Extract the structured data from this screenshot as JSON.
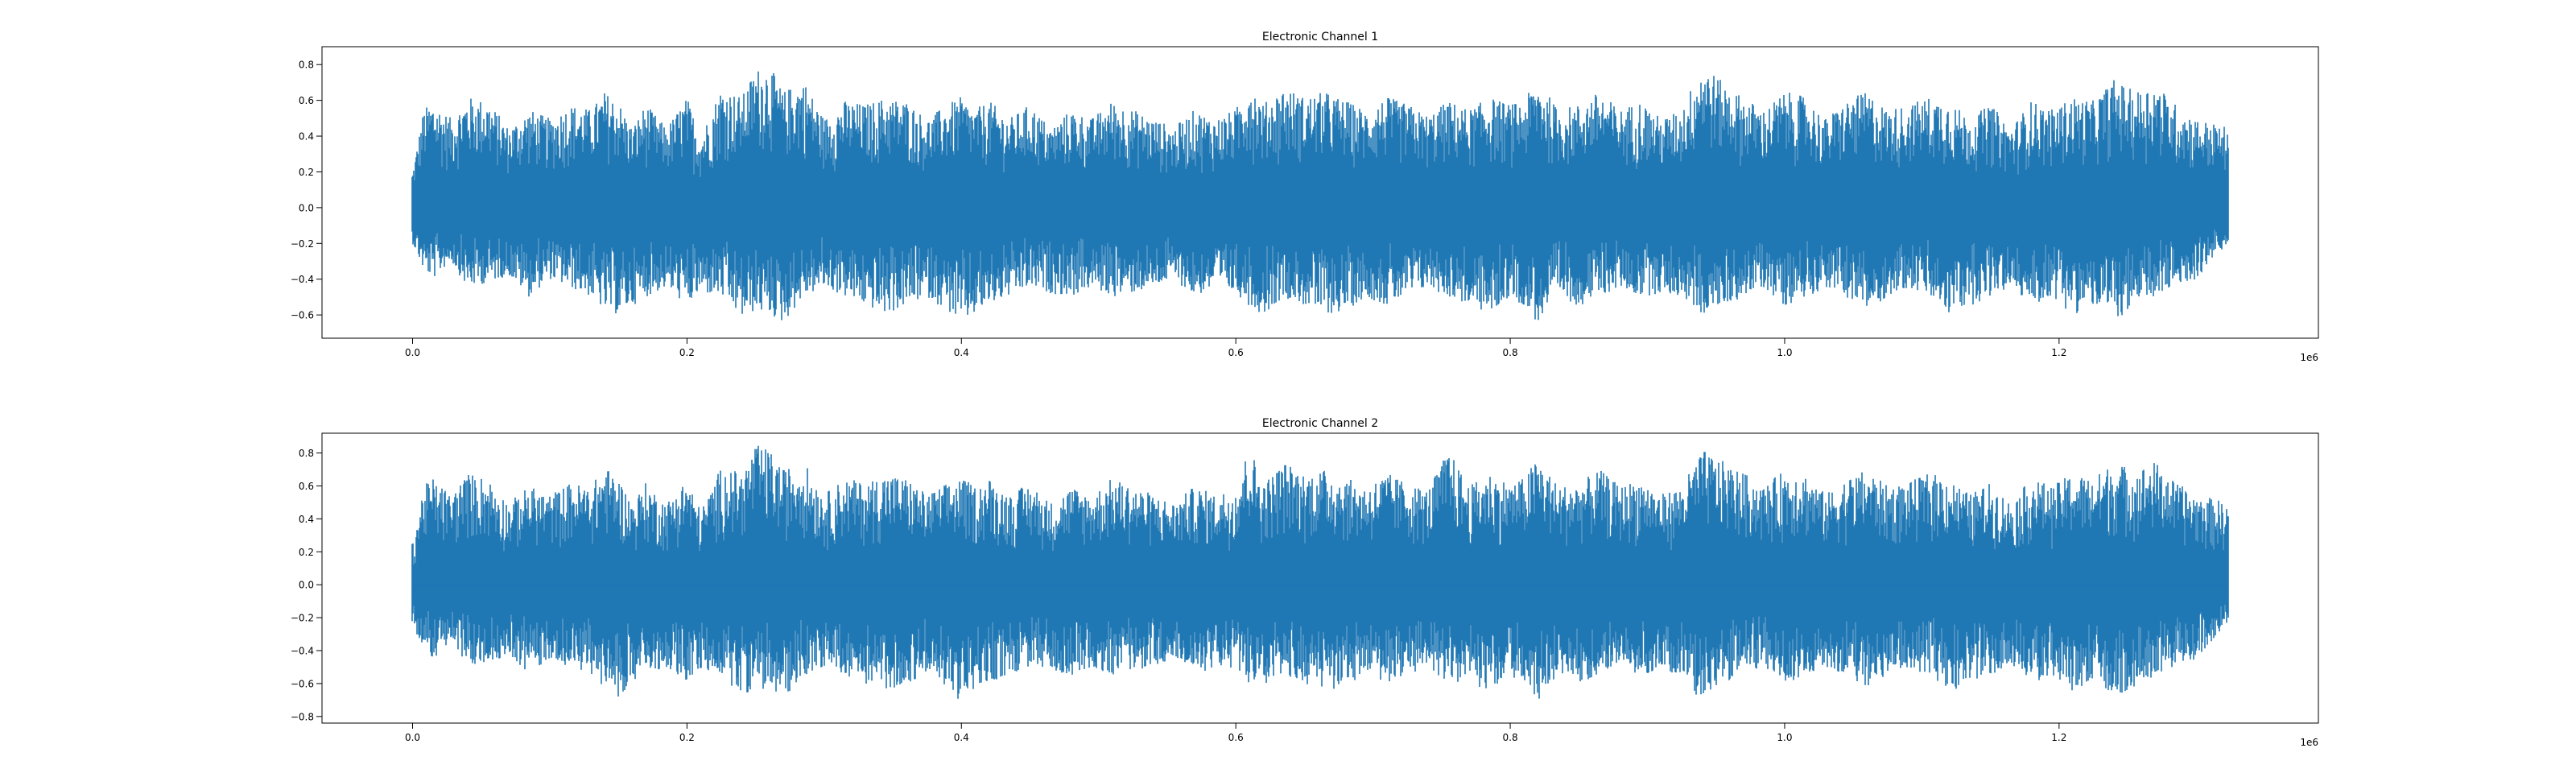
{
  "chart_data": [
    {
      "type": "line",
      "title": "Electronic Channel 1",
      "xlabel": "",
      "ylabel": "",
      "x_offset_label": "1e6",
      "xlim": [
        -0.066,
        1.389
      ],
      "ylim": [
        -0.73,
        0.9
      ],
      "x_ticks": [
        0.0,
        0.2,
        0.4,
        0.6,
        0.8,
        1.0,
        1.2
      ],
      "x_tick_labels": [
        "0.0",
        "0.2",
        "0.4",
        "0.6",
        "0.8",
        "1.0",
        "1.2"
      ],
      "y_ticks": [
        -0.6,
        -0.4,
        -0.2,
        0.0,
        0.2,
        0.4,
        0.6,
        0.8
      ],
      "y_tick_labels": [
        "−0.6",
        "−0.4",
        "−0.2",
        "0.0",
        "0.2",
        "0.4",
        "0.6",
        "0.8"
      ],
      "grid": false,
      "line_color": "#1f77b4",
      "series": [
        {
          "x_range": [
            0.0,
            1.323
          ],
          "envelope_x": [
            0.0,
            0.008,
            0.015,
            0.028,
            0.04,
            0.055,
            0.07,
            0.085,
            0.1,
            0.115,
            0.13,
            0.14,
            0.15,
            0.16,
            0.17,
            0.185,
            0.2,
            0.21,
            0.225,
            0.24,
            0.25,
            0.26,
            0.27,
            0.285,
            0.3,
            0.315,
            0.33,
            0.345,
            0.36,
            0.375,
            0.39,
            0.4,
            0.41,
            0.42,
            0.435,
            0.45,
            0.465,
            0.48,
            0.495,
            0.51,
            0.525,
            0.54,
            0.555,
            0.57,
            0.585,
            0.6,
            0.61,
            0.62,
            0.635,
            0.65,
            0.665,
            0.68,
            0.695,
            0.71,
            0.725,
            0.74,
            0.755,
            0.77,
            0.785,
            0.8,
            0.81,
            0.82,
            0.835,
            0.85,
            0.865,
            0.88,
            0.895,
            0.91,
            0.925,
            0.94,
            0.955,
            0.97,
            0.985,
            1.0,
            1.015,
            1.03,
            1.045,
            1.06,
            1.075,
            1.09,
            1.105,
            1.12,
            1.135,
            1.15,
            1.165,
            1.18,
            1.195,
            1.21,
            1.225,
            1.24,
            1.255,
            1.27,
            1.285,
            1.3,
            1.323
          ],
          "envelope_max": [
            0.2,
            0.55,
            0.6,
            0.5,
            0.62,
            0.6,
            0.45,
            0.55,
            0.5,
            0.58,
            0.55,
            0.65,
            0.6,
            0.45,
            0.58,
            0.45,
            0.62,
            0.4,
            0.68,
            0.62,
            0.78,
            0.8,
            0.65,
            0.72,
            0.5,
            0.6,
            0.58,
            0.62,
            0.6,
            0.5,
            0.58,
            0.62,
            0.55,
            0.6,
            0.5,
            0.58,
            0.45,
            0.55,
            0.5,
            0.6,
            0.55,
            0.5,
            0.45,
            0.55,
            0.5,
            0.55,
            0.72,
            0.58,
            0.68,
            0.62,
            0.65,
            0.6,
            0.55,
            0.62,
            0.58,
            0.52,
            0.6,
            0.55,
            0.62,
            0.58,
            0.6,
            0.72,
            0.55,
            0.58,
            0.65,
            0.55,
            0.6,
            0.5,
            0.55,
            0.82,
            0.7,
            0.62,
            0.55,
            0.65,
            0.62,
            0.5,
            0.6,
            0.65,
            0.55,
            0.58,
            0.62,
            0.6,
            0.5,
            0.58,
            0.45,
            0.6,
            0.55,
            0.62,
            0.6,
            0.72,
            0.65,
            0.7,
            0.58,
            0.5,
            0.45
          ],
          "envelope_min": [
            -0.2,
            -0.35,
            -0.4,
            -0.3,
            -0.45,
            -0.42,
            -0.38,
            -0.5,
            -0.4,
            -0.45,
            -0.5,
            -0.58,
            -0.6,
            -0.55,
            -0.5,
            -0.45,
            -0.55,
            -0.48,
            -0.5,
            -0.62,
            -0.58,
            -0.6,
            -0.65,
            -0.5,
            -0.45,
            -0.5,
            -0.55,
            -0.6,
            -0.55,
            -0.5,
            -0.58,
            -0.65,
            -0.6,
            -0.55,
            -0.5,
            -0.45,
            -0.48,
            -0.5,
            -0.45,
            -0.5,
            -0.48,
            -0.45,
            -0.4,
            -0.5,
            -0.45,
            -0.48,
            -0.55,
            -0.6,
            -0.5,
            -0.55,
            -0.6,
            -0.58,
            -0.5,
            -0.55,
            -0.5,
            -0.45,
            -0.5,
            -0.55,
            -0.6,
            -0.5,
            -0.55,
            -0.65,
            -0.5,
            -0.55,
            -0.5,
            -0.45,
            -0.5,
            -0.48,
            -0.5,
            -0.6,
            -0.55,
            -0.5,
            -0.45,
            -0.55,
            -0.5,
            -0.45,
            -0.5,
            -0.58,
            -0.5,
            -0.45,
            -0.5,
            -0.6,
            -0.55,
            -0.5,
            -0.45,
            -0.55,
            -0.5,
            -0.6,
            -0.55,
            -0.62,
            -0.58,
            -0.5,
            -0.45,
            -0.4,
            -0.2
          ]
        }
      ]
    },
    {
      "type": "line",
      "title": "Electronic Channel 2",
      "xlabel": "",
      "ylabel": "",
      "x_offset_label": "1e6",
      "xlim": [
        -0.066,
        1.389
      ],
      "ylim": [
        -0.84,
        0.92
      ],
      "x_ticks": [
        0.0,
        0.2,
        0.4,
        0.6,
        0.8,
        1.0,
        1.2
      ],
      "x_tick_labels": [
        "0.0",
        "0.2",
        "0.4",
        "0.6",
        "0.8",
        "1.0",
        "1.2"
      ],
      "y_ticks": [
        -0.8,
        -0.6,
        -0.4,
        -0.2,
        0.0,
        0.2,
        0.4,
        0.6,
        0.8
      ],
      "y_tick_labels": [
        "−0.8",
        "−0.6",
        "−0.4",
        "−0.2",
        "0.0",
        "0.2",
        "0.4",
        "0.6",
        "0.8"
      ],
      "grid": false,
      "line_color": "#1f77b4",
      "series": [
        {
          "x_range": [
            0.0,
            1.323
          ],
          "envelope_x": [
            0.0,
            0.008,
            0.015,
            0.028,
            0.04,
            0.055,
            0.07,
            0.085,
            0.1,
            0.115,
            0.13,
            0.14,
            0.15,
            0.16,
            0.17,
            0.185,
            0.2,
            0.21,
            0.225,
            0.24,
            0.25,
            0.26,
            0.27,
            0.285,
            0.3,
            0.315,
            0.33,
            0.345,
            0.36,
            0.375,
            0.39,
            0.4,
            0.41,
            0.42,
            0.435,
            0.45,
            0.465,
            0.48,
            0.495,
            0.51,
            0.525,
            0.54,
            0.555,
            0.57,
            0.585,
            0.6,
            0.61,
            0.62,
            0.635,
            0.65,
            0.665,
            0.68,
            0.695,
            0.71,
            0.725,
            0.74,
            0.755,
            0.77,
            0.785,
            0.8,
            0.81,
            0.82,
            0.835,
            0.85,
            0.865,
            0.88,
            0.895,
            0.91,
            0.925,
            0.94,
            0.955,
            0.97,
            0.985,
            1.0,
            1.015,
            1.03,
            1.045,
            1.06,
            1.075,
            1.09,
            1.105,
            1.12,
            1.135,
            1.15,
            1.165,
            1.18,
            1.195,
            1.21,
            1.225,
            1.24,
            1.255,
            1.27,
            1.285,
            1.3,
            1.323
          ],
          "envelope_max": [
            0.25,
            0.6,
            0.65,
            0.55,
            0.68,
            0.65,
            0.5,
            0.6,
            0.55,
            0.62,
            0.6,
            0.72,
            0.65,
            0.5,
            0.62,
            0.5,
            0.65,
            0.45,
            0.72,
            0.68,
            0.85,
            0.82,
            0.7,
            0.75,
            0.55,
            0.65,
            0.62,
            0.68,
            0.65,
            0.55,
            0.62,
            0.65,
            0.6,
            0.65,
            0.55,
            0.62,
            0.5,
            0.6,
            0.55,
            0.65,
            0.6,
            0.55,
            0.5,
            0.6,
            0.55,
            0.6,
            0.85,
            0.62,
            0.75,
            0.68,
            0.7,
            0.65,
            0.6,
            0.68,
            0.62,
            0.58,
            0.82,
            0.6,
            0.68,
            0.62,
            0.65,
            0.78,
            0.6,
            0.62,
            0.7,
            0.6,
            0.65,
            0.55,
            0.6,
            0.82,
            0.75,
            0.68,
            0.6,
            0.7,
            0.68,
            0.55,
            0.65,
            0.7,
            0.6,
            0.62,
            0.68,
            0.65,
            0.55,
            0.62,
            0.5,
            0.65,
            0.6,
            0.68,
            0.65,
            0.75,
            0.7,
            0.75,
            0.62,
            0.55,
            0.5
          ],
          "envelope_min": [
            -0.25,
            -0.4,
            -0.45,
            -0.35,
            -0.5,
            -0.48,
            -0.42,
            -0.55,
            -0.45,
            -0.5,
            -0.55,
            -0.62,
            -0.68,
            -0.6,
            -0.55,
            -0.5,
            -0.6,
            -0.52,
            -0.55,
            -0.68,
            -0.62,
            -0.65,
            -0.7,
            -0.55,
            -0.5,
            -0.55,
            -0.6,
            -0.65,
            -0.6,
            -0.55,
            -0.62,
            -0.72,
            -0.65,
            -0.6,
            -0.55,
            -0.5,
            -0.52,
            -0.55,
            -0.5,
            -0.55,
            -0.52,
            -0.5,
            -0.45,
            -0.55,
            -0.5,
            -0.52,
            -0.6,
            -0.65,
            -0.55,
            -0.6,
            -0.65,
            -0.62,
            -0.55,
            -0.6,
            -0.55,
            -0.5,
            -0.6,
            -0.6,
            -0.65,
            -0.55,
            -0.6,
            -0.72,
            -0.55,
            -0.6,
            -0.55,
            -0.5,
            -0.55,
            -0.52,
            -0.55,
            -0.72,
            -0.6,
            -0.55,
            -0.5,
            -0.6,
            -0.55,
            -0.5,
            -0.55,
            -0.62,
            -0.55,
            -0.5,
            -0.55,
            -0.65,
            -0.6,
            -0.55,
            -0.5,
            -0.6,
            -0.55,
            -0.65,
            -0.6,
            -0.68,
            -0.62,
            -0.55,
            -0.5,
            -0.45,
            -0.25
          ]
        }
      ]
    }
  ]
}
